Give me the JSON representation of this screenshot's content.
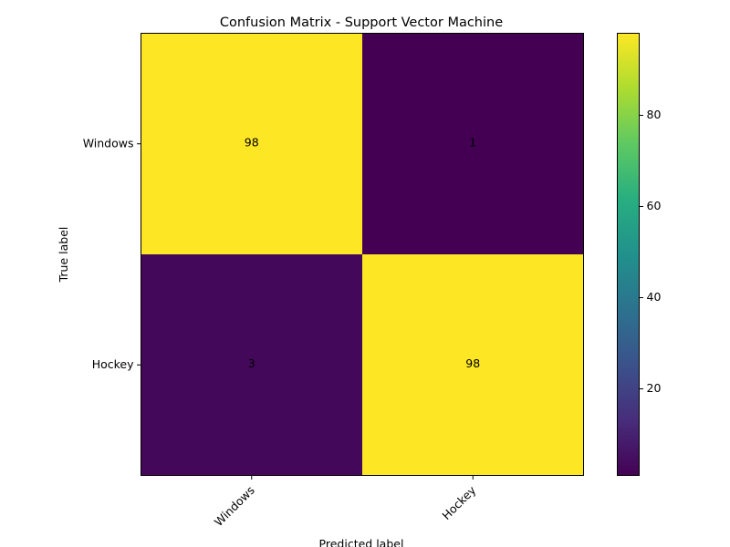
{
  "chart_data": {
    "type": "heatmap",
    "title": "Confusion Matrix - Support Vector Machine",
    "xlabel": "Predicted label",
    "ylabel": "True label",
    "x_categories": [
      "Windows",
      "Hockey"
    ],
    "y_categories": [
      "Windows",
      "Hockey"
    ],
    "matrix": [
      [
        98,
        1
      ],
      [
        3,
        98
      ]
    ],
    "colormap": "viridis",
    "color_range": [
      1,
      98
    ],
    "colorbar_ticks": [
      "20",
      "40",
      "60",
      "80"
    ],
    "colorbar_tick_values": [
      20,
      40,
      60,
      80
    ],
    "cell_text_color": "#000000"
  }
}
